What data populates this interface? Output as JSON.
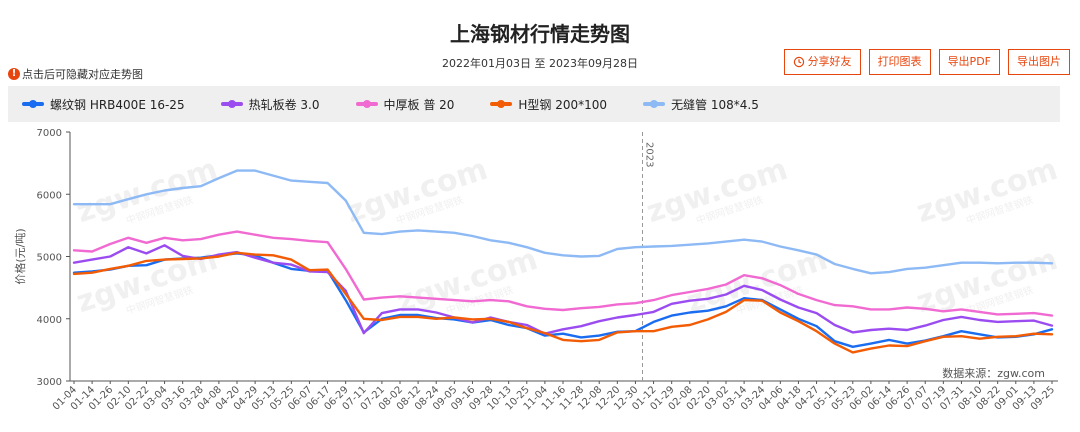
{
  "title": "上海钢材行情走势图",
  "date_range": "2022年01月03日 至 2023年09月28日",
  "tip": "点击后可隐藏对应走势图",
  "buttons": {
    "share": "分享好友",
    "print": "打印图表",
    "export_pdf": "导出PDF",
    "export_img": "导出图片"
  },
  "source": "数据来源：zgw.com",
  "watermark": "zgw.com",
  "watermark_sub": "中钢网智慧钢铁",
  "year_marker": "2023",
  "colors": {
    "rebar": "#1a6cf0",
    "hot": "#9b4cf0",
    "plate": "#f06ad2",
    "hbeam": "#f25c05",
    "pipe": "#8db9f5"
  },
  "chart_data": {
    "type": "line",
    "title": "上海钢材行情走势图",
    "ylabel": "价格(元/吨)",
    "ylim": [
      3000,
      7000
    ],
    "yticks": [
      3000,
      4000,
      5000,
      6000,
      7000
    ],
    "grid": false,
    "legend_position": "top",
    "x": [
      "01-04",
      "01-14",
      "01-26",
      "02-10",
      "02-22",
      "03-04",
      "03-16",
      "03-28",
      "04-08",
      "04-20",
      "04-29",
      "05-13",
      "05-25",
      "06-07",
      "06-17",
      "06-29",
      "07-11",
      "07-21",
      "08-02",
      "08-12",
      "08-24",
      "09-05",
      "09-16",
      "09-28",
      "10-13",
      "10-25",
      "11-04",
      "11-16",
      "11-28",
      "12-08",
      "12-20",
      "12-30",
      "01-12",
      "01-29",
      "02-08",
      "02-20",
      "03-02",
      "03-14",
      "03-24",
      "04-06",
      "04-18",
      "04-27",
      "05-11",
      "05-23",
      "06-02",
      "06-14",
      "06-26",
      "07-07",
      "07-19",
      "07-31",
      "08-10",
      "08-22",
      "09-01",
      "09-13",
      "09-25"
    ],
    "series": [
      {
        "name": "螺纹钢 HRB400E 16-25",
        "color": "#1a6cf0",
        "values": [
          4740,
          4760,
          4790,
          4850,
          4860,
          4950,
          4970,
          4980,
          5020,
          5050,
          5020,
          4900,
          4800,
          4770,
          4770,
          4300,
          3780,
          4000,
          4060,
          4060,
          4010,
          3990,
          3940,
          3980,
          3900,
          3850,
          3730,
          3760,
          3700,
          3730,
          3790,
          3800,
          3950,
          4050,
          4100,
          4130,
          4200,
          4330,
          4300,
          4150,
          4000,
          3880,
          3640,
          3550,
          3600,
          3660,
          3600,
          3650,
          3720,
          3800,
          3750,
          3700,
          3710,
          3750,
          3830
        ]
      },
      {
        "name": "热轧板卷 3.0",
        "color": "#9b4cf0",
        "values": [
          4900,
          4950,
          5000,
          5150,
          5050,
          5180,
          5010,
          4960,
          5030,
          5070,
          4980,
          4900,
          4870,
          4760,
          4750,
          4450,
          3770,
          4090,
          4150,
          4150,
          4100,
          4020,
          3940,
          4020,
          3950,
          3900,
          3760,
          3830,
          3880,
          3960,
          4020,
          4060,
          4110,
          4240,
          4290,
          4320,
          4390,
          4530,
          4460,
          4310,
          4180,
          4090,
          3900,
          3780,
          3820,
          3840,
          3820,
          3890,
          3980,
          4030,
          3980,
          3950,
          3960,
          3970,
          3890
        ]
      },
      {
        "name": "中厚板 普 20",
        "color": "#f06ad2",
        "values": [
          5100,
          5080,
          5200,
          5300,
          5220,
          5300,
          5260,
          5280,
          5350,
          5400,
          5350,
          5300,
          5280,
          5250,
          5230,
          4800,
          4310,
          4340,
          4360,
          4340,
          4320,
          4300,
          4280,
          4300,
          4280,
          4200,
          4160,
          4140,
          4170,
          4190,
          4230,
          4250,
          4300,
          4380,
          4430,
          4480,
          4550,
          4700,
          4650,
          4540,
          4400,
          4300,
          4220,
          4200,
          4150,
          4150,
          4180,
          4160,
          4120,
          4150,
          4110,
          4070,
          4080,
          4090,
          4050
        ]
      },
      {
        "name": "H型钢 200*100",
        "color": "#f25c05",
        "values": [
          4720,
          4740,
          4800,
          4850,
          4930,
          4950,
          4960,
          4970,
          5000,
          5060,
          5030,
          5020,
          4950,
          4780,
          4790,
          4400,
          4000,
          3980,
          4030,
          4030,
          4000,
          4020,
          3990,
          4000,
          3950,
          3850,
          3770,
          3660,
          3640,
          3660,
          3780,
          3800,
          3800,
          3870,
          3900,
          3990,
          4110,
          4300,
          4290,
          4100,
          3960,
          3800,
          3600,
          3460,
          3520,
          3570,
          3560,
          3640,
          3710,
          3720,
          3680,
          3710,
          3720,
          3760,
          3750
        ]
      },
      {
        "name": "无缝管 108*4.5",
        "color": "#8db9f5",
        "values": [
          5840,
          5840,
          5840,
          5920,
          6000,
          6060,
          6100,
          6130,
          6260,
          6380,
          6380,
          6300,
          6220,
          6200,
          6180,
          5900,
          5380,
          5360,
          5400,
          5420,
          5400,
          5380,
          5330,
          5260,
          5220,
          5150,
          5060,
          5020,
          5000,
          5010,
          5120,
          5150,
          5160,
          5170,
          5190,
          5210,
          5240,
          5270,
          5240,
          5160,
          5100,
          5030,
          4880,
          4800,
          4730,
          4750,
          4800,
          4820,
          4860,
          4900,
          4900,
          4890,
          4900,
          4900,
          4890
        ]
      }
    ]
  }
}
